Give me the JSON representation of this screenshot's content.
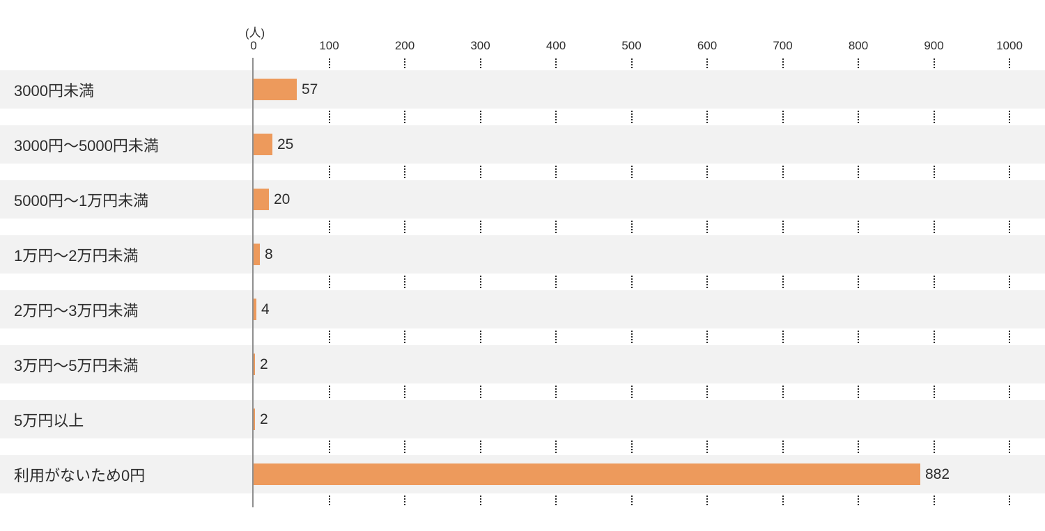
{
  "chart_data": {
    "type": "bar",
    "orientation": "horizontal",
    "title": "",
    "unit_label": "(人)",
    "categories": [
      "3000円未満",
      "3000円〜5000円未満",
      "5000円〜1万円未満",
      "1万円〜2万円未満",
      "2万円〜3万円未満",
      "3万円〜5万円未満",
      "5万円以上",
      "利用がないため0円"
    ],
    "values": [
      57,
      25,
      20,
      8,
      4,
      2,
      2,
      882
    ],
    "value_labels": [
      "57",
      "25",
      "20",
      "8",
      "4",
      "2",
      "2",
      "882"
    ],
    "xlim": [
      0,
      1000
    ],
    "x_ticks": [
      0,
      100,
      200,
      300,
      400,
      500,
      600,
      700,
      800,
      900,
      1000
    ],
    "grid": "dotted-vertical-at-ticks",
    "legend": "none",
    "colors": {
      "bar": "#ED9A5C",
      "row_stripe": "#F2F2F2",
      "text": "#2D2D2D",
      "axis_line": "#8F8F8F",
      "grid_dots": "#2B2B2B",
      "background": "#FFFFFF"
    }
  }
}
